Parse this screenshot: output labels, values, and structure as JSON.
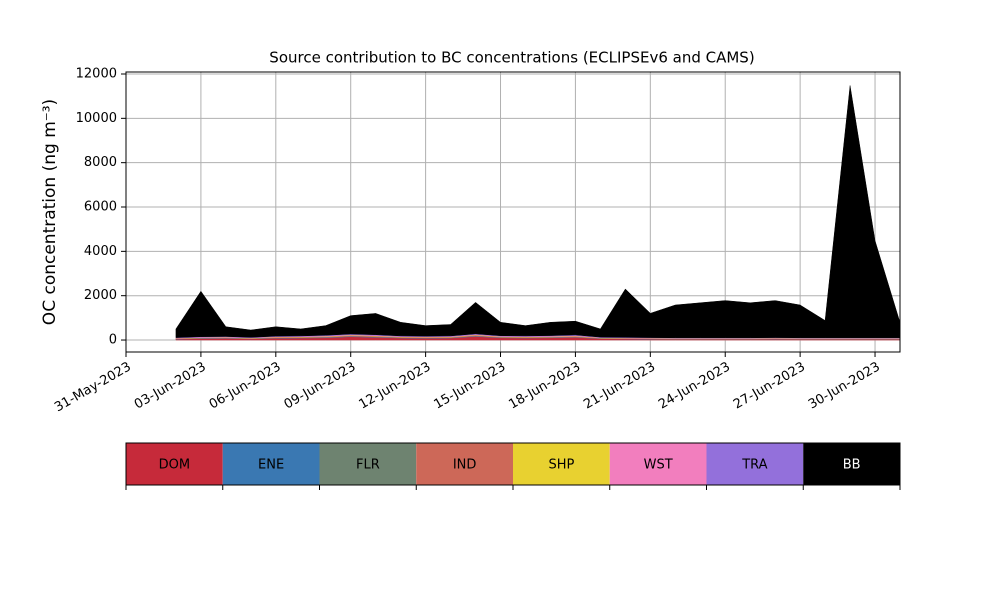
{
  "chart_data": {
    "type": "stacked_area",
    "title": "Source contribution to BC concentrations (ECLIPSEv6 and CAMS)",
    "y_label": "OC concentration (ng m⁻³)",
    "x": [
      "2023-06-02",
      "2023-06-03",
      "2023-06-04",
      "2023-06-05",
      "2023-06-06",
      "2023-06-07",
      "2023-06-08",
      "2023-06-09",
      "2023-06-10",
      "2023-06-11",
      "2023-06-12",
      "2023-06-13",
      "2023-06-14",
      "2023-06-15",
      "2023-06-16",
      "2023-06-17",
      "2023-06-18",
      "2023-06-19",
      "2023-06-20",
      "2023-06-21",
      "2023-06-22",
      "2023-06-23",
      "2023-06-24",
      "2023-06-25",
      "2023-06-26",
      "2023-06-27",
      "2023-06-28",
      "2023-06-29",
      "2023-06-30",
      "2023-07-01"
    ],
    "series": [
      {
        "name": "DOM",
        "color": "#c62a3a",
        "values": [
          40,
          60,
          70,
          50,
          80,
          90,
          100,
          150,
          120,
          90,
          80,
          90,
          160,
          100,
          90,
          100,
          120,
          60,
          50,
          40,
          30,
          30,
          30,
          30,
          40,
          30,
          30,
          30,
          30,
          30
        ]
      },
      {
        "name": "ENE",
        "color": "#3a78b2",
        "values": [
          10,
          15,
          15,
          10,
          15,
          15,
          20,
          20,
          20,
          15,
          15,
          15,
          20,
          15,
          15,
          15,
          15,
          10,
          10,
          10,
          10,
          10,
          10,
          10,
          10,
          10,
          10,
          10,
          10,
          10
        ]
      },
      {
        "name": "FLR",
        "color": "#6e8370",
        "values": [
          5,
          5,
          5,
          5,
          5,
          5,
          5,
          5,
          5,
          5,
          5,
          5,
          5,
          5,
          5,
          5,
          5,
          5,
          5,
          5,
          5,
          5,
          5,
          5,
          5,
          5,
          5,
          5,
          5,
          5
        ]
      },
      {
        "name": "IND",
        "color": "#cd6858",
        "values": [
          15,
          20,
          20,
          15,
          20,
          20,
          25,
          30,
          30,
          20,
          20,
          20,
          30,
          20,
          20,
          20,
          25,
          15,
          15,
          15,
          15,
          15,
          15,
          15,
          15,
          15,
          15,
          15,
          15,
          15
        ]
      },
      {
        "name": "SHP",
        "color": "#e8d130",
        "values": [
          10,
          10,
          10,
          10,
          15,
          15,
          15,
          15,
          15,
          15,
          15,
          15,
          15,
          15,
          15,
          15,
          15,
          10,
          10,
          10,
          10,
          10,
          10,
          10,
          10,
          10,
          10,
          10,
          10,
          10
        ]
      },
      {
        "name": "WST",
        "color": "#f27ebe",
        "values": [
          10,
          15,
          15,
          10,
          15,
          15,
          20,
          20,
          20,
          15,
          15,
          15,
          20,
          15,
          15,
          20,
          20,
          10,
          10,
          10,
          10,
          10,
          10,
          10,
          10,
          10,
          10,
          10,
          10,
          10
        ]
      },
      {
        "name": "TRA",
        "color": "#9370db",
        "values": [
          20,
          25,
          25,
          20,
          25,
          25,
          30,
          30,
          30,
          25,
          25,
          25,
          30,
          25,
          25,
          25,
          30,
          20,
          20,
          20,
          20,
          20,
          20,
          20,
          20,
          20,
          20,
          20,
          20,
          20
        ]
      },
      {
        "name": "BB",
        "color": "#000000",
        "values": [
          390,
          2050,
          440,
          330,
          425,
          315,
          435,
          830,
          960,
          615,
          475,
          515,
          1420,
          605,
          465,
          600,
          620,
          370,
          2180,
          1095,
          1480,
          1580,
          1680,
          1580,
          1670,
          1480,
          780,
          11380,
          4380,
          690
        ]
      }
    ],
    "xlim": [
      "2023-05-31",
      "2023-07-01"
    ],
    "xticks": [
      {
        "value": "2023-05-31",
        "label": "31-May-2023"
      },
      {
        "value": "2023-06-03",
        "label": "03-Jun-2023"
      },
      {
        "value": "2023-06-06",
        "label": "06-Jun-2023"
      },
      {
        "value": "2023-06-09",
        "label": "09-Jun-2023"
      },
      {
        "value": "2023-06-12",
        "label": "12-Jun-2023"
      },
      {
        "value": "2023-06-15",
        "label": "15-Jun-2023"
      },
      {
        "value": "2023-06-18",
        "label": "18-Jun-2023"
      },
      {
        "value": "2023-06-21",
        "label": "21-Jun-2023"
      },
      {
        "value": "2023-06-24",
        "label": "24-Jun-2023"
      },
      {
        "value": "2023-06-27",
        "label": "27-Jun-2023"
      },
      {
        "value": "2023-06-30",
        "label": "30-Jun-2023"
      }
    ],
    "ylim": [
      -540,
      12090
    ],
    "yticks": [
      0,
      2000,
      4000,
      6000,
      8000,
      10000,
      12000
    ],
    "grid": true
  }
}
